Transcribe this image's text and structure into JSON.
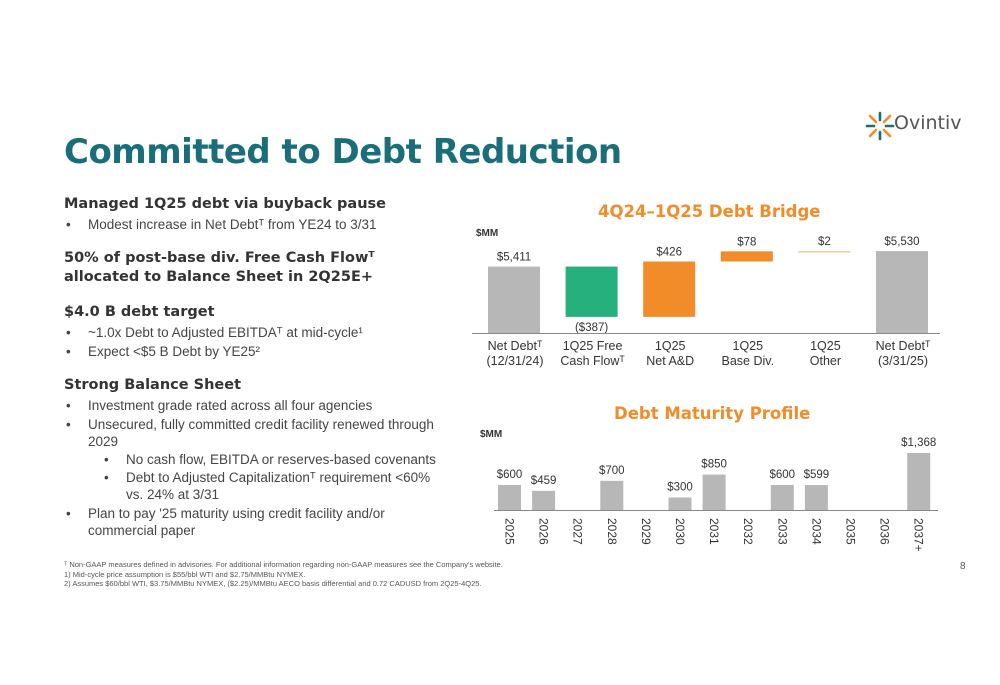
{
  "page": {
    "title": "Committed to Debt Reduction",
    "logo_text": "Ovintiv",
    "page_number": "8"
  },
  "left": {
    "s1_heading": "Managed 1Q25 debt via buyback pause",
    "s1_b1": "Modest increase in Net Debtᵀ from YE24 to 3/31",
    "s2_heading_1": "50% of post-base div. Free Cash Flowᵀ",
    "s2_heading_2": "allocated to Balance Sheet in 2Q25E+",
    "s3_heading": "$4.0 B debt target",
    "s3_b1": "~1.0x Debt to Adjusted EBITDAᵀ at mid-cycle¹",
    "s3_b2": "Expect <$5 B Debt by YE25²",
    "s4_heading": "Strong Balance Sheet",
    "s4_b1": "Investment grade rated across all four agencies",
    "s4_b2": "Unsecured, fully committed credit facility renewed through 2029",
    "s4_b2a": "No cash flow, EBITDA or reserves-based covenants",
    "s4_b2b": "Debt to Adjusted Capitalizationᵀ requirement <60% vs. 24% at 3/31",
    "s4_b3": "Plan to pay '25 maturity using credit facility and/or commercial paper"
  },
  "footnotes": {
    "f0": "ᵀ Non-GAAP measures defined in advisories. For additional information regarding non-GAAP measures see the Company's website.",
    "f1": "1) Mid-cycle price assumption is $55/bbl WTI and $2.75/MMBtu NYMEX.",
    "f2": "2) Assumes $60/bbl WTI, $3.75/MMBtu NYMEX, ($2.25)/MMBtu AECO basis differential and 0.72 CADUSD from 2Q25-4Q25."
  },
  "colors": {
    "gray": "#b7b7b7",
    "green": "#26b07e",
    "orange": "#f28c28",
    "light_orange": "#f7c79b",
    "axis": "#888888"
  },
  "chart_data": [
    {
      "type": "bar",
      "subtype": "waterfall",
      "title": "4Q24–1Q25 Debt Bridge",
      "unit_label": "$MM",
      "categories": [
        [
          "Net Debtᵀ",
          "(12/31/24)"
        ],
        [
          "1Q25 Free",
          "Cash Flowᵀ"
        ],
        [
          "1Q25",
          "Net A&D"
        ],
        [
          "1Q25",
          "Base Div."
        ],
        [
          "1Q25",
          "Other"
        ],
        [
          "Net Debtᵀ",
          "(3/31/25)"
        ]
      ],
      "values": [
        5411,
        -387,
        426,
        78,
        2,
        5530
      ],
      "labels": [
        "$5,411",
        "($387)",
        "$426",
        "$78",
        "$2",
        "$5,530"
      ],
      "kinds": [
        "total",
        "delta",
        "delta",
        "delta",
        "delta",
        "total"
      ],
      "bar_colors": [
        "gray",
        "green",
        "orange",
        "orange",
        "light_orange",
        "gray"
      ]
    },
    {
      "type": "bar",
      "title": "Debt Maturity Profile",
      "unit_label": "$MM",
      "categories": [
        "2025",
        "2026",
        "2027",
        "2028",
        "2029",
        "2030",
        "2031",
        "2032",
        "2033",
        "2034",
        "2035",
        "2036",
        "2037+"
      ],
      "values": [
        600,
        459,
        0,
        700,
        0,
        300,
        850,
        0,
        600,
        599,
        0,
        0,
        1368
      ],
      "labels": [
        "$600",
        "$459",
        "",
        "$700",
        "",
        "$300",
        "$850",
        "",
        "$600",
        "$599",
        "",
        "",
        "$1,368"
      ],
      "bar_color": "gray"
    }
  ]
}
